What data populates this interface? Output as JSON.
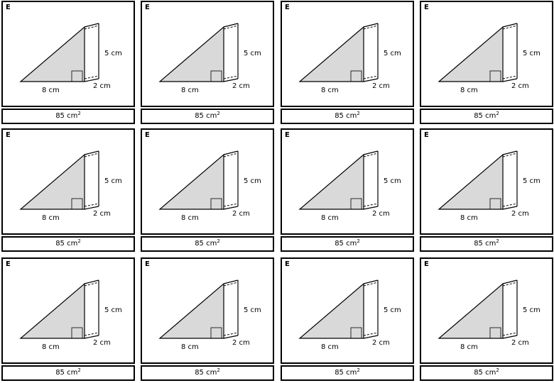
{
  "cards": [
    {
      "label": "E",
      "base": "8 cm",
      "height": "5 cm",
      "depth": "2 cm",
      "answer_value": "85 cm",
      "answer_exp": "2"
    },
    {
      "label": "E",
      "base": "8 cm",
      "height": "5 cm",
      "depth": "2 cm",
      "answer_value": "85 cm",
      "answer_exp": "2"
    },
    {
      "label": "E",
      "base": "8 cm",
      "height": "5 cm",
      "depth": "2 cm",
      "answer_value": "85 cm",
      "answer_exp": "2"
    },
    {
      "label": "E",
      "base": "8 cm",
      "height": "5 cm",
      "depth": "2 cm",
      "answer_value": "85 cm",
      "answer_exp": "2"
    },
    {
      "label": "E",
      "base": "8 cm",
      "height": "5 cm",
      "depth": "2 cm",
      "answer_value": "85 cm",
      "answer_exp": "2"
    },
    {
      "label": "E",
      "base": "8 cm",
      "height": "5 cm",
      "depth": "2 cm",
      "answer_value": "85 cm",
      "answer_exp": "2"
    },
    {
      "label": "E",
      "base": "8 cm",
      "height": "5 cm",
      "depth": "2 cm",
      "answer_value": "85 cm",
      "answer_exp": "2"
    },
    {
      "label": "E",
      "base": "8 cm",
      "height": "5 cm",
      "depth": "2 cm",
      "answer_value": "85 cm",
      "answer_exp": "2"
    },
    {
      "label": "E",
      "base": "8 cm",
      "height": "5 cm",
      "depth": "2 cm",
      "answer_value": "85 cm",
      "answer_exp": "2"
    },
    {
      "label": "E",
      "base": "8 cm",
      "height": "5 cm",
      "depth": "2 cm",
      "answer_value": "85 cm",
      "answer_exp": "2"
    },
    {
      "label": "E",
      "base": "8 cm",
      "height": "5 cm",
      "depth": "2 cm",
      "answer_value": "85 cm",
      "answer_exp": "2"
    },
    {
      "label": "E",
      "base": "8 cm",
      "height": "5 cm",
      "depth": "2 cm",
      "answer_value": "85 cm",
      "answer_exp": "2"
    }
  ],
  "colors": {
    "face_fill": "#d9d9d9",
    "line": "#000000"
  }
}
